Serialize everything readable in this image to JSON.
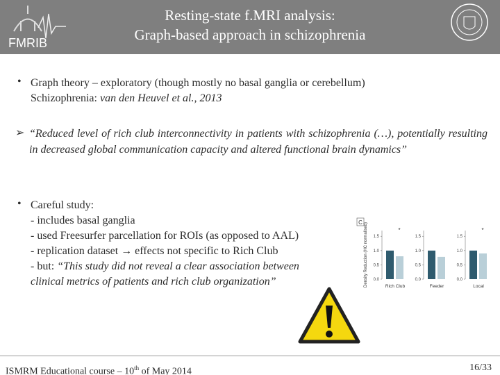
{
  "header": {
    "title": [
      "Resting-state f.MRI analysis:",
      "Graph-based approach in schizophrenia"
    ],
    "logo": "FMRIB"
  },
  "bullet1": {
    "text": "Graph theory – exploratory (though mostly no basal ganglia or cerebellum)",
    "sub_prefix": "Schizophrenia: ",
    "sub_ref": "van den Heuvel et al., 2013"
  },
  "quote": "“Reduced level of rich club interconnectivity in patients with schizophrenia (…), potentially resulting in decreased global communication capacity and altered functional brain dynamics”",
  "bullet2": {
    "text": "Careful study:",
    "lines": [
      "- includes basal ganglia",
      "- used Freesurfer parcellation for ROIs (as opposed to AAL)",
      "- replication dataset → effects not specific to Rich Club"
    ],
    "last_prefix": "- but: ",
    "last_quote": "“This study did not reveal a clear association between clinical metrics of patients and rich club organization”"
  },
  "figure": {
    "panel_label": "C",
    "ylabel": "Density Reduction (HC normalised)",
    "ylim": [
      0,
      1.7
    ],
    "yticks": [
      {
        "value": 0,
        "label": "0.0"
      },
      0.5,
      {
        "value": 1,
        "label": "1.0"
      },
      1.5
    ],
    "colors": [
      "#2f5b6e",
      "#b9cfd8"
    ],
    "panels": [
      {
        "name": "Rich Club",
        "values": [
          1.0,
          0.8
        ],
        "marker": "*"
      },
      {
        "name": "Feeder",
        "values": [
          1.0,
          0.78
        ]
      },
      {
        "name": "Local",
        "values": [
          1.0,
          0.9
        ],
        "marker": "*"
      }
    ]
  },
  "footer": {
    "left": "ISMRM Educational course – 10",
    "sup": "th",
    "left_end": " of May 2014",
    "page": "16/33"
  }
}
